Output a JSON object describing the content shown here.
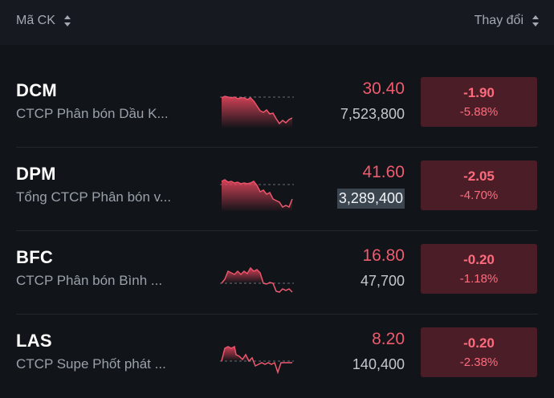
{
  "header": {
    "symbol_label": "Mã CK",
    "change_label": "Thay đổi"
  },
  "colors": {
    "down": "#ef5a6f",
    "box": "#4b1e27",
    "bg": "#111418"
  },
  "stocks": [
    {
      "ticker": "DCM",
      "name": "CTCP Phân bón Dầu K...",
      "price": "30.40",
      "volume": "7,523,800",
      "change": "-1.90",
      "change_pct": "-5.88%"
    },
    {
      "ticker": "DPM",
      "name": "Tổng CTCP Phân bón v...",
      "price": "41.60",
      "volume": "3,289,400",
      "change": "-2.05",
      "change_pct": "-4.70%"
    },
    {
      "ticker": "BFC",
      "name": "CTCP Phân bón Bình ...",
      "price": "16.80",
      "volume": "47,700",
      "change": "-0.20",
      "change_pct": "-1.18%"
    },
    {
      "ticker": "LAS",
      "name": "CTCP Supe Phốt phát ...",
      "price": "8.20",
      "volume": "140,400",
      "change": "-0.20",
      "change_pct": "-2.38%"
    }
  ]
}
